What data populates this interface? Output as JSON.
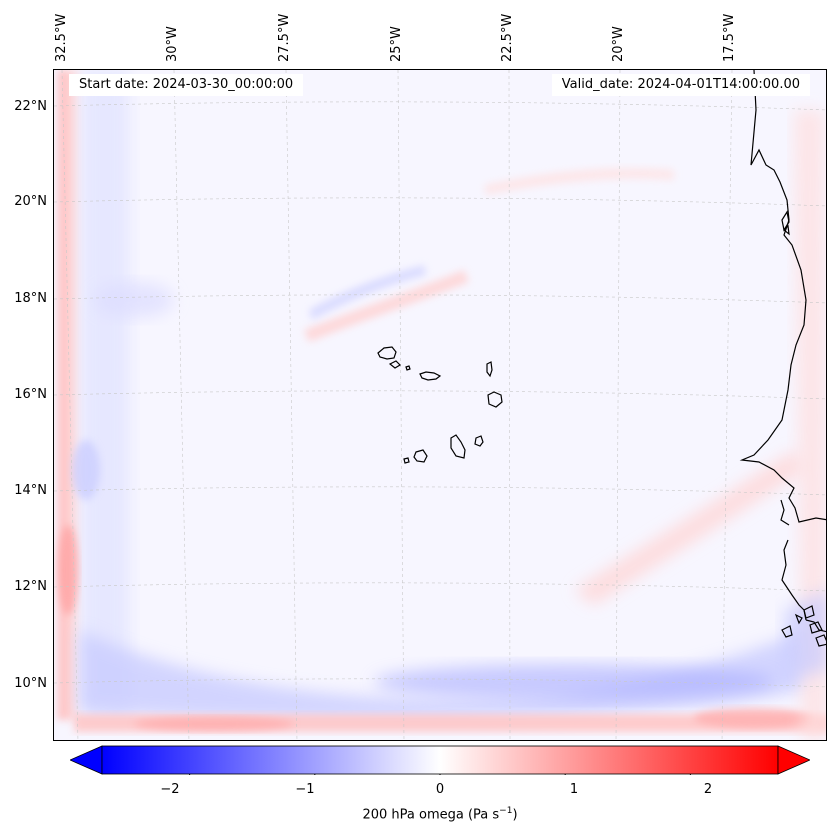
{
  "map": {
    "start_date": "Start date: 2024-03-30_00:00:00",
    "valid_date": "Valid_date: 2024-04-01T14:00:00.00",
    "longitude_labels": [
      "32.5°W",
      "30°W",
      "27.5°W",
      "25°W",
      "22.5°W",
      "20°W",
      "17.5°W"
    ],
    "latitude_labels": [
      "22°N",
      "20°N",
      "18°N",
      "16°N",
      "14°N",
      "12°N",
      "10°N"
    ],
    "colors": {
      "coastline": "#000000",
      "gridline": "#c8c8c8",
      "negative": "#0000ff",
      "positive": "#ff0000",
      "background": "#f7f6ff"
    }
  },
  "colorbar": {
    "title": "200 hPa omega (Pa s",
    "title_sup": "−1",
    "title_end": ")",
    "min": -2.7,
    "max": 2.7,
    "tick_values": [
      -2,
      -1,
      0,
      1,
      2
    ],
    "tick_labels": [
      "−2",
      "−1",
      "0",
      "1",
      "2"
    ]
  }
}
